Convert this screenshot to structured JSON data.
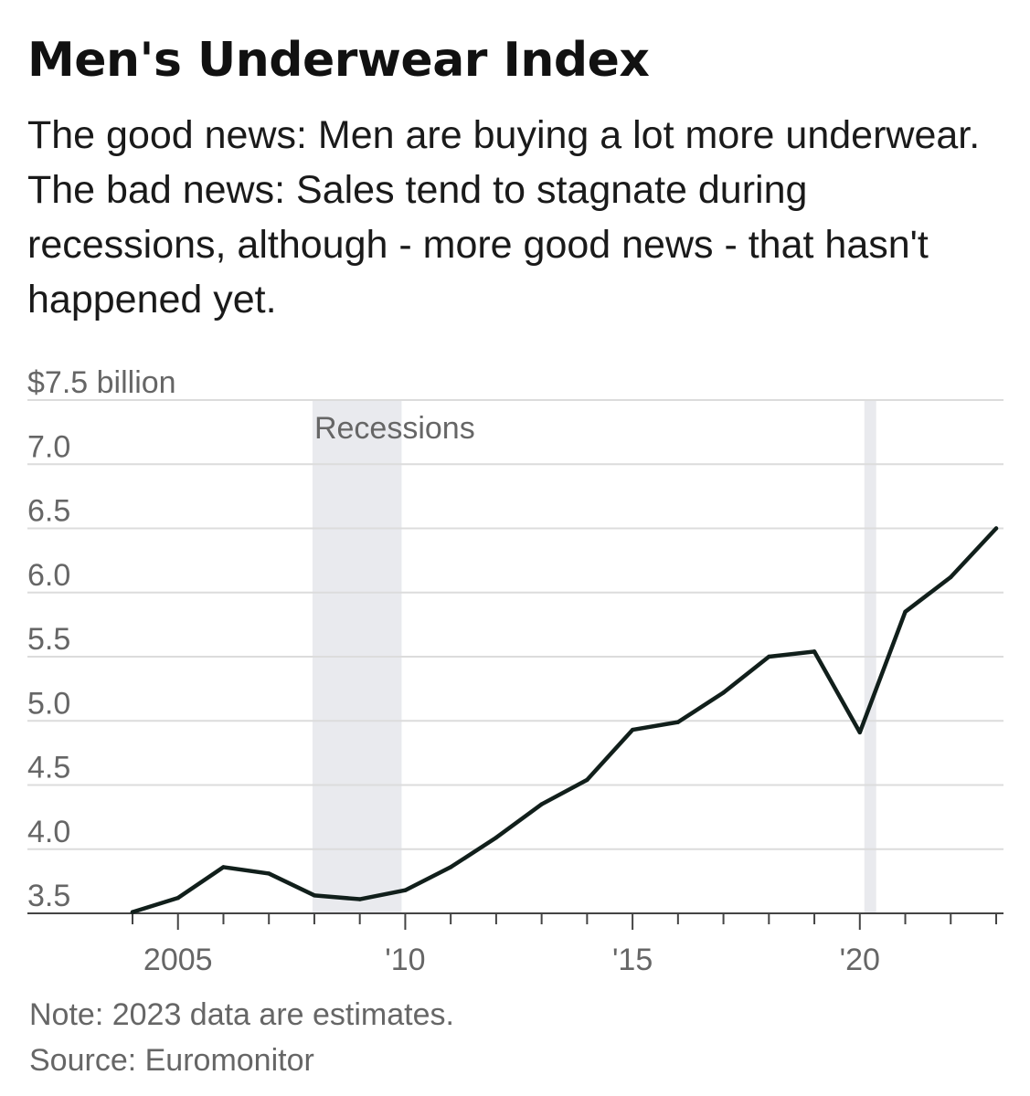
{
  "title": "Men's Underwear Index",
  "subtitle": "The good news: Men are buying a lot more underwear. The bad news: Sales tend to stagnate during recessions, although - more good news - that hasn't happened yet.",
  "note": "Note: 2023 data are estimates.",
  "source": "Source: Euromonitor",
  "colors": {
    "line": "#111f1b",
    "recession": "#e9eaee",
    "grid": "#dcdcdc",
    "axis": "#444444",
    "tick_label": "#666666"
  },
  "chart_data": {
    "type": "line",
    "title": "Men's Underwear Index",
    "ylabel": "",
    "ylim": [
      3.5,
      7.5
    ],
    "yticks": [
      3.5,
      4.0,
      4.5,
      5.0,
      5.5,
      6.0,
      6.5,
      7.0,
      7.5
    ],
    "ytick_labels": [
      "3.5",
      "4.0",
      "4.5",
      "5.0",
      "5.5",
      "6.0",
      "6.5",
      "7.0",
      "$7.5 billion"
    ],
    "xlim": [
      2004,
      2023
    ],
    "xtick_labels": [
      {
        "x": 2005,
        "label": "2005"
      },
      {
        "x": 2010,
        "label": "'10"
      },
      {
        "x": 2015,
        "label": "'15"
      },
      {
        "x": 2020,
        "label": "'20"
      }
    ],
    "x": [
      2004,
      2005,
      2006,
      2007,
      2008,
      2009,
      2010,
      2011,
      2012,
      2013,
      2014,
      2015,
      2016,
      2017,
      2018,
      2019,
      2020,
      2021,
      2022,
      2023
    ],
    "series": [
      {
        "values": [
          3.51,
          3.62,
          3.86,
          3.81,
          3.64,
          3.61,
          3.68,
          3.86,
          4.09,
          4.35,
          4.54,
          4.93,
          4.99,
          5.22,
          5.5,
          5.54,
          4.91,
          5.85,
          6.12,
          6.5
        ]
      }
    ],
    "shaded_ranges": [
      {
        "label": "Recessions",
        "x_start": 2007.96,
        "x_end": 2009.92
      },
      {
        "label": "",
        "x_start": 2020.1,
        "x_end": 2020.36
      }
    ],
    "grid": true
  }
}
